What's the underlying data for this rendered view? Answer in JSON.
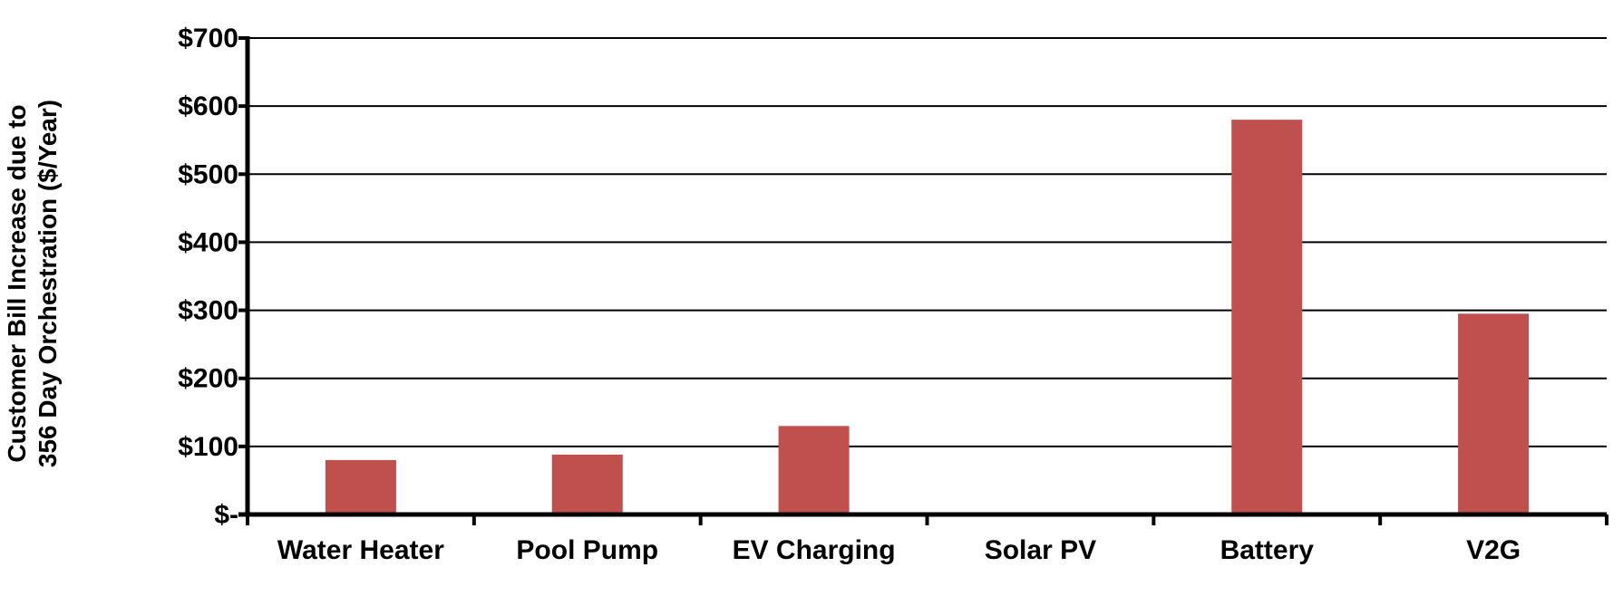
{
  "chart_data": {
    "type": "bar",
    "title": "",
    "categories": [
      "Water Heater",
      "Pool Pump",
      "EV Charging",
      "Solar PV",
      "Battery",
      "V2G"
    ],
    "values": [
      80,
      88,
      130,
      0,
      580,
      295
    ],
    "ylabel_lines": [
      "Customer Bill Increase due to",
      "356 Day Orchestration ($/Year)"
    ],
    "xlabel": "",
    "ylim": [
      0,
      700
    ],
    "yticks": [
      0,
      100,
      200,
      300,
      400,
      500,
      600,
      700
    ],
    "ytick_labels": [
      "$-",
      "$100",
      "$200",
      "$300",
      "$400",
      "$500",
      "$600",
      "$700"
    ],
    "grid": true,
    "legend": "none",
    "bar_color": "#C0504D"
  }
}
